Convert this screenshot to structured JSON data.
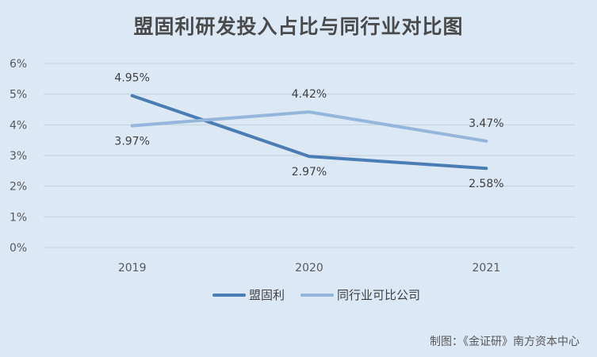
{
  "chart_data": {
    "type": "line",
    "title": "盟固利研发投入占比与同行业对比图",
    "xlabel": "",
    "ylabel": "",
    "categories": [
      "2019",
      "2020",
      "2021"
    ],
    "ylim": [
      0,
      6
    ],
    "yticks": [
      "0%",
      "1%",
      "2%",
      "3%",
      "4%",
      "5%",
      "6%"
    ],
    "grid": true,
    "legend_position": "bottom",
    "series": [
      {
        "name": "盟固利",
        "values": [
          4.95,
          2.97,
          2.58
        ],
        "labels": [
          "4.95%",
          "2.97%",
          "2.58%"
        ],
        "color": "#4a7db3"
      },
      {
        "name": "同行业可比公司",
        "values": [
          3.97,
          4.42,
          3.47
        ],
        "labels": [
          "3.97%",
          "4.42%",
          "3.47%"
        ],
        "color": "#95b6dc"
      }
    ]
  },
  "credit": "制图：《金证研》南方资本中心"
}
